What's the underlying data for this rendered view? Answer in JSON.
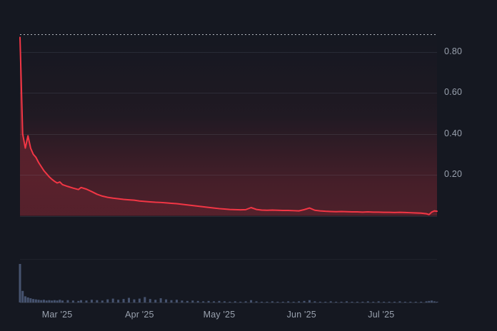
{
  "theme": {
    "background": "#151821",
    "grid_color": "#2a3040",
    "tick_text_color": "#99a1ae",
    "price_line_color": "#f23645",
    "area_glow_color": "#f23645",
    "volume_bar_color": "#46536f",
    "max_line_color": "#cfd3da"
  },
  "chart_data": {
    "type": "line",
    "title": "",
    "x_domain": [
      "2025-02-15",
      "2025-07-22"
    ],
    "y_range": [
      0,
      1.0
    ],
    "grid": true,
    "legend": "none",
    "y_ticks": [
      {
        "value": 0.8,
        "label": "0.80"
      },
      {
        "value": 0.6,
        "label": "0.60"
      },
      {
        "value": 0.4,
        "label": "0.40"
      },
      {
        "value": 0.2,
        "label": "0.20"
      }
    ],
    "x_ticks": [
      {
        "date": "2025-03-01",
        "label": "Mar '25"
      },
      {
        "date": "2025-04-01",
        "label": "Apr '25"
      },
      {
        "date": "2025-05-01",
        "label": "May '25"
      },
      {
        "date": "2025-06-01",
        "label": "Jun '25"
      },
      {
        "date": "2025-07-01",
        "label": "Jul '25"
      }
    ],
    "max_reference_line": {
      "value": 0.885,
      "style": "dotted"
    },
    "series": [
      {
        "name": "price",
        "type": "line",
        "color": "#f23645"
      },
      {
        "name": "volume",
        "type": "bar",
        "color": "#46536f",
        "scale": "relative-to-max"
      }
    ],
    "rows": [
      [
        "2025-02-15",
        0.87,
        1.0
      ],
      [
        "2025-02-16",
        0.4,
        0.3
      ],
      [
        "2025-02-17",
        0.33,
        0.16
      ],
      [
        "2025-02-18",
        0.39,
        0.13
      ],
      [
        "2025-02-19",
        0.33,
        0.11
      ],
      [
        "2025-02-20",
        0.3,
        0.09
      ],
      [
        "2025-02-21",
        0.285,
        0.08
      ],
      [
        "2025-02-22",
        0.26,
        0.07
      ],
      [
        "2025-02-23",
        0.24,
        0.06
      ],
      [
        "2025-02-24",
        0.22,
        0.07
      ],
      [
        "2025-02-25",
        0.205,
        0.05
      ],
      [
        "2025-02-26",
        0.19,
        0.06
      ],
      [
        "2025-02-27",
        0.178,
        0.05
      ],
      [
        "2025-02-28",
        0.168,
        0.06
      ],
      [
        "2025-03-01",
        0.16,
        0.05
      ],
      [
        "2025-03-02",
        0.165,
        0.07
      ],
      [
        "2025-03-03",
        0.152,
        0.05
      ],
      [
        "2025-03-05",
        0.143,
        0.06
      ],
      [
        "2025-03-07",
        0.135,
        0.05
      ],
      [
        "2025-03-09",
        0.128,
        0.04
      ],
      [
        "2025-03-10",
        0.138,
        0.06
      ],
      [
        "2025-03-12",
        0.13,
        0.05
      ],
      [
        "2025-03-14",
        0.118,
        0.07
      ],
      [
        "2025-03-16",
        0.105,
        0.06
      ],
      [
        "2025-03-18",
        0.096,
        0.05
      ],
      [
        "2025-03-20",
        0.09,
        0.08
      ],
      [
        "2025-03-22",
        0.086,
        0.1
      ],
      [
        "2025-03-24",
        0.083,
        0.07
      ],
      [
        "2025-03-26",
        0.08,
        0.09
      ],
      [
        "2025-03-28",
        0.078,
        0.12
      ],
      [
        "2025-03-30",
        0.076,
        0.08
      ],
      [
        "2025-04-01",
        0.072,
        0.1
      ],
      [
        "2025-04-03",
        0.07,
        0.14
      ],
      [
        "2025-04-05",
        0.068,
        0.09
      ],
      [
        "2025-04-07",
        0.066,
        0.07
      ],
      [
        "2025-04-09",
        0.065,
        0.11
      ],
      [
        "2025-04-11",
        0.063,
        0.08
      ],
      [
        "2025-04-13",
        0.061,
        0.06
      ],
      [
        "2025-04-15",
        0.059,
        0.07
      ],
      [
        "2025-04-17",
        0.056,
        0.05
      ],
      [
        "2025-04-19",
        0.053,
        0.04
      ],
      [
        "2025-04-21",
        0.05,
        0.05
      ],
      [
        "2025-04-23",
        0.047,
        0.04
      ],
      [
        "2025-04-25",
        0.044,
        0.03
      ],
      [
        "2025-04-27",
        0.041,
        0.04
      ],
      [
        "2025-04-29",
        0.038,
        0.03
      ],
      [
        "2025-05-01",
        0.035,
        0.04
      ],
      [
        "2025-05-03",
        0.033,
        0.03
      ],
      [
        "2025-05-05",
        0.031,
        0.02
      ],
      [
        "2025-05-07",
        0.03,
        0.03
      ],
      [
        "2025-05-09",
        0.029,
        0.02
      ],
      [
        "2025-05-11",
        0.03,
        0.03
      ],
      [
        "2025-05-13",
        0.04,
        0.06
      ],
      [
        "2025-05-15",
        0.031,
        0.03
      ],
      [
        "2025-05-17",
        0.028,
        0.02
      ],
      [
        "2025-05-19",
        0.027,
        0.02
      ],
      [
        "2025-05-21",
        0.028,
        0.03
      ],
      [
        "2025-05-23",
        0.027,
        0.02
      ],
      [
        "2025-05-25",
        0.026,
        0.02
      ],
      [
        "2025-05-27",
        0.026,
        0.03
      ],
      [
        "2025-05-29",
        0.025,
        0.02
      ],
      [
        "2025-05-31",
        0.024,
        0.03
      ],
      [
        "2025-06-02",
        0.03,
        0.04
      ],
      [
        "2025-06-04",
        0.038,
        0.06
      ],
      [
        "2025-06-06",
        0.027,
        0.03
      ],
      [
        "2025-06-08",
        0.024,
        0.02
      ],
      [
        "2025-06-10",
        0.022,
        0.02
      ],
      [
        "2025-06-12",
        0.021,
        0.03
      ],
      [
        "2025-06-14",
        0.02,
        0.02
      ],
      [
        "2025-06-16",
        0.021,
        0.02
      ],
      [
        "2025-06-18",
        0.02,
        0.03
      ],
      [
        "2025-06-20",
        0.019,
        0.02
      ],
      [
        "2025-06-22",
        0.019,
        0.02
      ],
      [
        "2025-06-24",
        0.018,
        0.02
      ],
      [
        "2025-06-26",
        0.019,
        0.03
      ],
      [
        "2025-06-28",
        0.018,
        0.02
      ],
      [
        "2025-06-30",
        0.018,
        0.03
      ],
      [
        "2025-07-02",
        0.017,
        0.02
      ],
      [
        "2025-07-04",
        0.017,
        0.02
      ],
      [
        "2025-07-06",
        0.016,
        0.02
      ],
      [
        "2025-07-08",
        0.017,
        0.03
      ],
      [
        "2025-07-10",
        0.016,
        0.02
      ],
      [
        "2025-07-12",
        0.015,
        0.02
      ],
      [
        "2025-07-14",
        0.014,
        0.02
      ],
      [
        "2025-07-16",
        0.013,
        0.02
      ],
      [
        "2025-07-18",
        0.01,
        0.03
      ],
      [
        "2025-07-19",
        0.006,
        0.04
      ],
      [
        "2025-07-20",
        0.018,
        0.05
      ],
      [
        "2025-07-21",
        0.024,
        0.03
      ],
      [
        "2025-07-22",
        0.022,
        0.02
      ]
    ]
  }
}
